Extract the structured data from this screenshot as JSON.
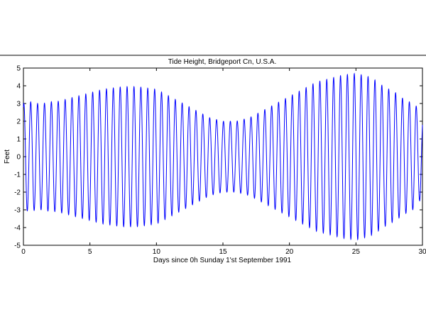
{
  "chart_data": {
    "type": "line",
    "title": "Tide Height, Bridgeport Cn, U.S.A.",
    "xlabel": "Days since 0h Sunday 1'st September 1991",
    "ylabel": "Feet",
    "xlim": [
      0,
      30
    ],
    "ylim": [
      -5,
      5
    ],
    "x_ticks": [
      0,
      5,
      10,
      15,
      20,
      25,
      30
    ],
    "y_ticks": [
      -5,
      -4,
      -3,
      -2,
      -1,
      0,
      1,
      2,
      3,
      4,
      5
    ],
    "grid": false,
    "line_color": "#0000ff",
    "series": [
      {
        "x": [
          0,
          0.5,
          1,
          1.5,
          2,
          2.5,
          3,
          3.5,
          4,
          4.5,
          5,
          5.5,
          6,
          6.5,
          7,
          7.5,
          8,
          8.5,
          9,
          9.5,
          10,
          10.5,
          11,
          11.5,
          12,
          12.5,
          13,
          13.5,
          14,
          14.5,
          15,
          15.5,
          16,
          16.5,
          17,
          17.5,
          18,
          18.5,
          19,
          19.5,
          20,
          20.5,
          21,
          21.5,
          22,
          22.5,
          23,
          23.5,
          24,
          24.5,
          25,
          25.5,
          26,
          26.5,
          27,
          27.5,
          28,
          28.5,
          29,
          29.5,
          30
        ],
        "envelope": [
          3.0,
          3.1,
          3.0,
          3.0,
          3.1,
          3.1,
          3.2,
          3.3,
          3.4,
          3.5,
          3.6,
          3.7,
          3.8,
          3.85,
          3.9,
          3.95,
          3.95,
          3.95,
          3.9,
          3.85,
          3.8,
          3.6,
          3.4,
          3.2,
          3.0,
          2.8,
          2.6,
          2.4,
          2.2,
          2.1,
          2.0,
          2.0,
          2.0,
          2.1,
          2.2,
          2.4,
          2.6,
          2.8,
          3.0,
          3.2,
          3.4,
          3.6,
          3.8,
          4.0,
          4.2,
          4.3,
          4.4,
          4.5,
          4.6,
          4.65,
          4.7,
          4.6,
          4.5,
          4.3,
          4.0,
          3.8,
          3.6,
          3.3,
          3.1,
          2.9,
          2.2
        ],
        "cycles_per_day": 1.932
      }
    ]
  }
}
